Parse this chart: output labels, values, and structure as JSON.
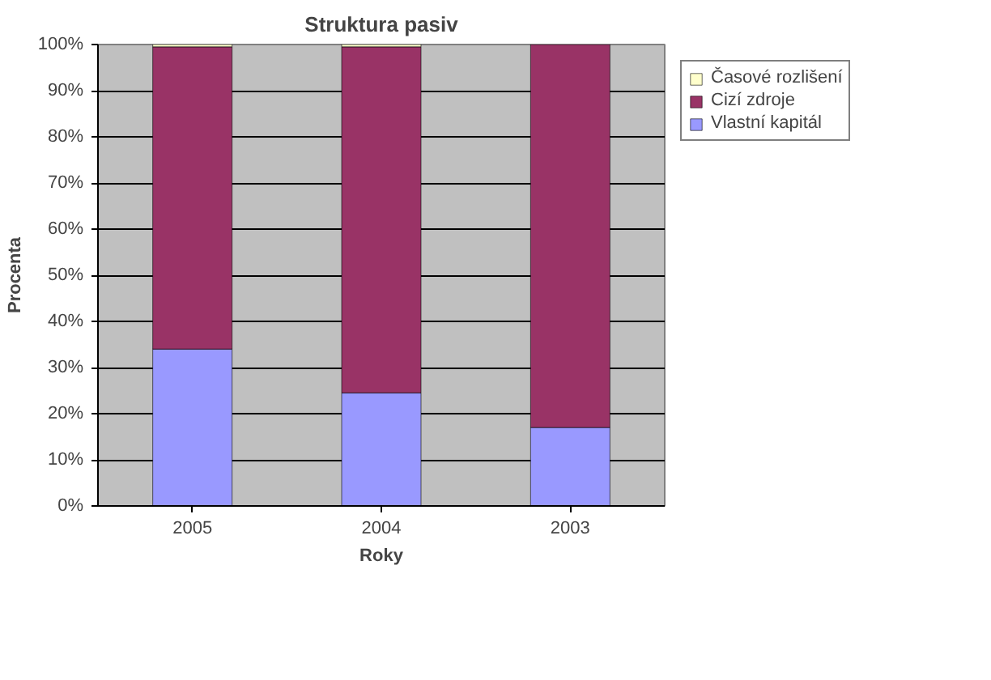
{
  "chart_data": {
    "type": "bar",
    "title": "Struktura pasiv",
    "xlabel": "Roky",
    "ylabel": "Procenta",
    "categories": [
      "2005",
      "2004",
      "2003"
    ],
    "stacked": true,
    "series": [
      {
        "name": "Vlastní kapitál",
        "color": "#9999ff",
        "values": [
          34,
          24.5,
          17
        ]
      },
      {
        "name": "Cizí zdroje",
        "color": "#993366",
        "values": [
          65.5,
          75,
          83
        ]
      },
      {
        "name": "Časové rozlišení",
        "color": "#ffffcc",
        "values": [
          0.5,
          0.5,
          0
        ]
      }
    ],
    "ylim": [
      0,
      100
    ],
    "yticks": [
      {
        "value": 0,
        "label": "0%"
      },
      {
        "value": 10,
        "label": "10%"
      },
      {
        "value": 20,
        "label": "20%"
      },
      {
        "value": 30,
        "label": "30%"
      },
      {
        "value": 40,
        "label": "40%"
      },
      {
        "value": 50,
        "label": "50%"
      },
      {
        "value": 60,
        "label": "60%"
      },
      {
        "value": 70,
        "label": "70%"
      },
      {
        "value": 80,
        "label": "80%"
      },
      {
        "value": 90,
        "label": "90%"
      },
      {
        "value": 100,
        "label": "100%"
      }
    ],
    "grid": "y",
    "legend": "right"
  }
}
